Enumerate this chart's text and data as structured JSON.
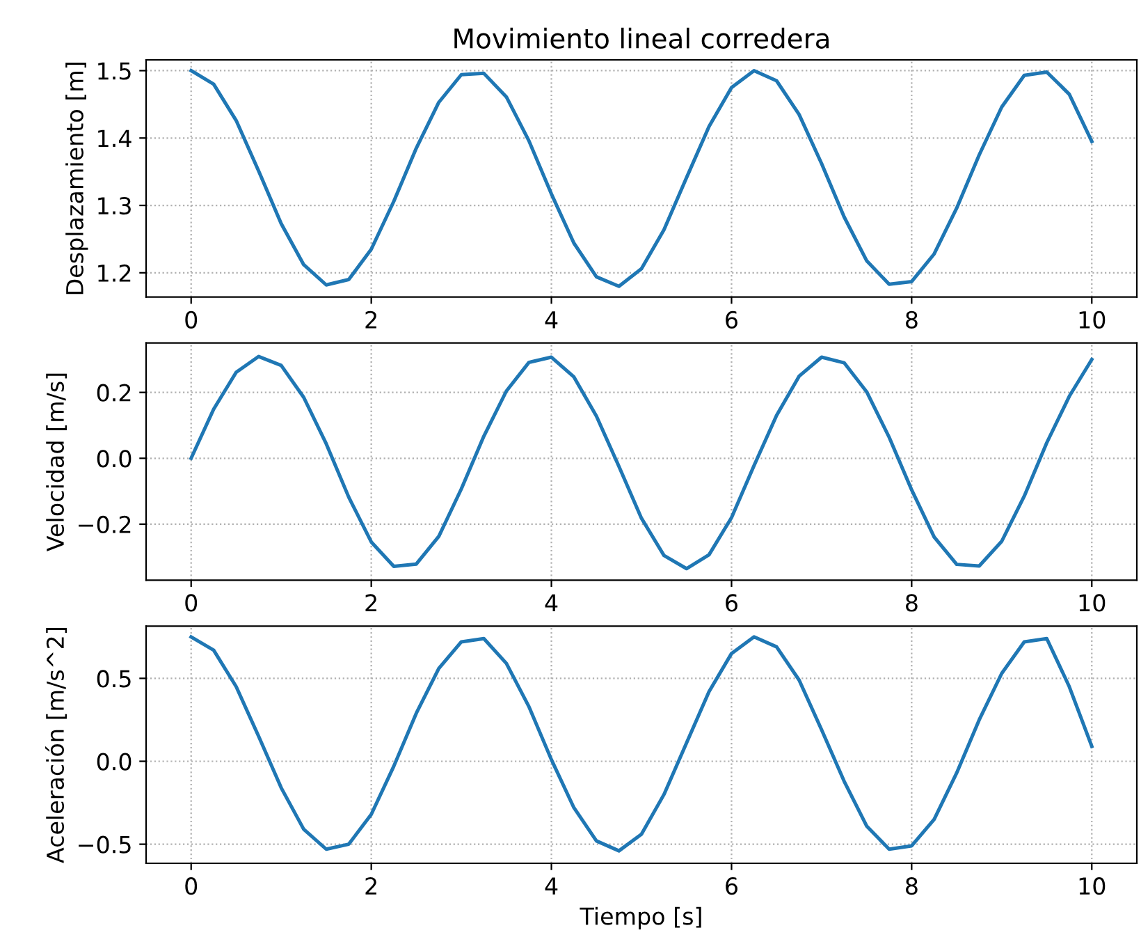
{
  "chart_data": [
    {
      "type": "line",
      "title": "Movimiento lineal corredera",
      "ylabel": "Desplazamiento [m]",
      "grid": true,
      "xlim": [
        -0.5,
        10.5
      ],
      "xticks": [
        0,
        2,
        4,
        6,
        8,
        10
      ],
      "ylim": [
        1.164,
        1.516
      ],
      "yticks": [
        1.2,
        1.3,
        1.4,
        1.5
      ],
      "x": [
        0,
        0.25,
        0.5,
        0.75,
        1,
        1.25,
        1.5,
        1.75,
        2,
        2.25,
        2.5,
        2.75,
        3,
        3.25,
        3.5,
        3.75,
        4,
        4.25,
        4.5,
        4.75,
        5,
        5.25,
        5.5,
        5.75,
        6,
        6.25,
        6.5,
        6.75,
        7,
        7.25,
        7.5,
        7.75,
        8,
        8.25,
        8.5,
        8.75,
        9,
        9.25,
        9.5,
        9.75,
        10
      ],
      "series": [
        {
          "color": "#1f77b4",
          "values": [
            1.5,
            1.48,
            1.426,
            1.351,
            1.273,
            1.212,
            1.182,
            1.19,
            1.235,
            1.306,
            1.385,
            1.453,
            1.494,
            1.496,
            1.461,
            1.396,
            1.317,
            1.244,
            1.194,
            1.18,
            1.206,
            1.264,
            1.341,
            1.417,
            1.475,
            1.5,
            1.485,
            1.435,
            1.362,
            1.283,
            1.218,
            1.183,
            1.187,
            1.228,
            1.296,
            1.375,
            1.446,
            1.493,
            1.498,
            1.465,
            1.395
          ]
        }
      ]
    },
    {
      "type": "line",
      "ylabel": "Velocidad [m/s]",
      "grid": true,
      "xlim": [
        -0.5,
        10.5
      ],
      "xticks": [
        0,
        2,
        4,
        6,
        8,
        10
      ],
      "ylim": [
        -0.37,
        0.35
      ],
      "yticks": [
        {
          "value": -0.2,
          "label": "−0.2"
        },
        {
          "value": 0,
          "label": "0.0"
        },
        0.2
      ],
      "x": [
        0,
        0.25,
        0.5,
        0.75,
        1,
        1.25,
        1.5,
        1.75,
        2,
        2.25,
        2.5,
        2.75,
        3,
        3.25,
        3.5,
        3.75,
        4,
        4.25,
        4.5,
        4.75,
        5,
        5.25,
        5.5,
        5.75,
        6,
        6.25,
        6.5,
        6.75,
        7,
        7.25,
        7.5,
        7.75,
        8,
        8.25,
        8.5,
        8.75,
        9,
        9.25,
        9.5,
        9.75,
        10
      ],
      "series": [
        {
          "color": "#1f77b4",
          "values": [
            0,
            0.149,
            0.261,
            0.309,
            0.282,
            0.185,
            0.044,
            -0.118,
            -0.254,
            -0.328,
            -0.321,
            -0.237,
            -0.093,
            0.067,
            0.204,
            0.291,
            0.307,
            0.247,
            0.128,
            -0.025,
            -0.182,
            -0.295,
            -0.335,
            -0.293,
            -0.18,
            -0.022,
            0.13,
            0.249,
            0.307,
            0.29,
            0.202,
            0.064,
            -0.096,
            -0.239,
            -0.322,
            -0.327,
            -0.252,
            -0.115,
            0.047,
            0.188,
            0.3
          ]
        }
      ]
    },
    {
      "type": "line",
      "xlabel": "Tiempo [s]",
      "ylabel": "Aceleración [m/s^2]",
      "grid": true,
      "xlim": [
        -0.5,
        10.5
      ],
      "xticks": [
        0,
        2,
        4,
        6,
        8,
        10
      ],
      "ylim": [
        -0.615,
        0.815
      ],
      "yticks": [
        {
          "value": -0.5,
          "label": "−0.5"
        },
        {
          "value": 0,
          "label": "0.0"
        },
        0.5
      ],
      "x": [
        0,
        0.25,
        0.5,
        0.75,
        1,
        1.25,
        1.5,
        1.75,
        2,
        2.25,
        2.5,
        2.75,
        3,
        3.25,
        3.5,
        3.75,
        4,
        4.25,
        4.5,
        4.75,
        5,
        5.25,
        5.5,
        5.75,
        6,
        6.25,
        6.5,
        6.75,
        7,
        7.25,
        7.5,
        7.75,
        8,
        8.25,
        8.5,
        8.75,
        9,
        9.25,
        9.5,
        9.75,
        10
      ],
      "series": [
        {
          "color": "#1f77b4",
          "values": [
            0.75,
            0.67,
            0.45,
            0.15,
            -0.16,
            -0.41,
            -0.53,
            -0.5,
            -0.32,
            -0.03,
            0.29,
            0.56,
            0.72,
            0.74,
            0.59,
            0.33,
            0.01,
            -0.28,
            -0.48,
            -0.54,
            -0.44,
            -0.2,
            0.11,
            0.42,
            0.65,
            0.75,
            0.69,
            0.49,
            0.19,
            -0.12,
            -0.39,
            -0.53,
            -0.51,
            -0.35,
            -0.07,
            0.25,
            0.53,
            0.72,
            0.74,
            0.45,
            0.09
          ]
        }
      ]
    }
  ]
}
